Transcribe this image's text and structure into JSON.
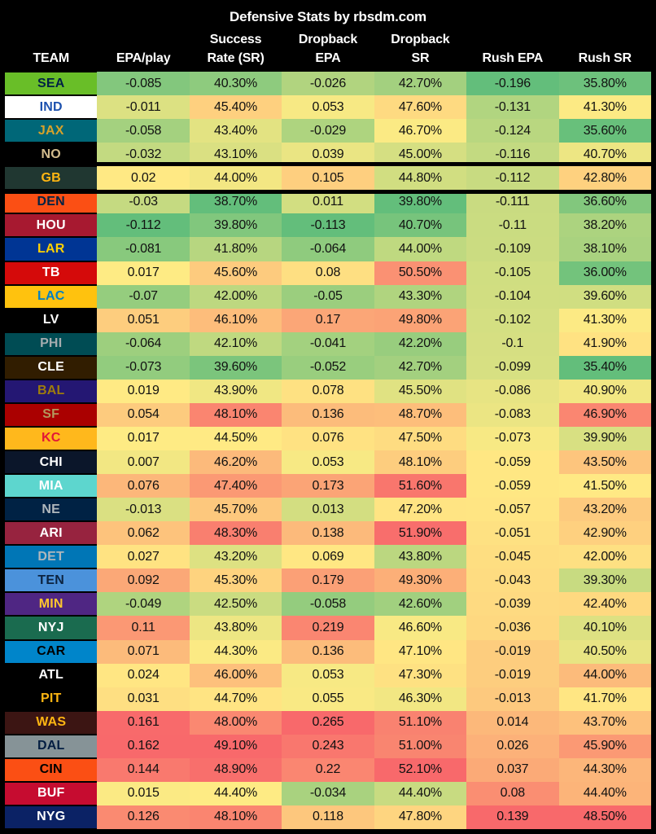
{
  "title": "Defensive Stats by rbsdm.com",
  "columns": [
    {
      "top": "",
      "label": "TEAM"
    },
    {
      "top": "",
      "label": "EPA/play"
    },
    {
      "top": "Success",
      "label": "Rate (SR)"
    },
    {
      "top": "Dropback",
      "label": "EPA"
    },
    {
      "top": "Dropback",
      "label": "SR"
    },
    {
      "top": "",
      "label": "Rush EPA"
    },
    {
      "top": "",
      "label": "Rush SR"
    }
  ],
  "heatmap_colors": {
    "good": "#63BE7B",
    "mid": "#FFEB84",
    "bad": "#F8696B"
  },
  "background_color": "#000000",
  "highlighted_team": "GB",
  "teams": [
    {
      "abbr": "SEA",
      "bg": "#69BE28",
      "fg": "#002244",
      "epa": "-0.085",
      "sr": "40.30%",
      "db_epa": "-0.026",
      "db_sr": "42.70%",
      "rush_epa": "-0.196",
      "rush_sr": "35.80%"
    },
    {
      "abbr": "IND",
      "bg": "#FFFFFF",
      "fg": "#1D51AE",
      "epa": "-0.011",
      "sr": "45.40%",
      "db_epa": "0.053",
      "db_sr": "47.60%",
      "rush_epa": "-0.131",
      "rush_sr": "41.30%"
    },
    {
      "abbr": "JAX",
      "bg": "#006778",
      "fg": "#D7A22A",
      "epa": "-0.058",
      "sr": "43.40%",
      "db_epa": "-0.029",
      "db_sr": "46.70%",
      "rush_epa": "-0.124",
      "rush_sr": "35.60%"
    },
    {
      "abbr": "NO",
      "bg": "#000000",
      "fg": "#D3BC8D",
      "epa": "-0.032",
      "sr": "43.10%",
      "db_epa": "0.039",
      "db_sr": "45.00%",
      "rush_epa": "-0.116",
      "rush_sr": "40.70%"
    },
    {
      "abbr": "GB",
      "bg": "#203731",
      "fg": "#FFB612",
      "epa": "0.02",
      "sr": "44.00%",
      "db_epa": "0.105",
      "db_sr": "44.80%",
      "rush_epa": "-0.112",
      "rush_sr": "42.80%"
    },
    {
      "abbr": "DEN",
      "bg": "#FB4F14",
      "fg": "#002244",
      "epa": "-0.03",
      "sr": "38.70%",
      "db_epa": "0.011",
      "db_sr": "39.80%",
      "rush_epa": "-0.111",
      "rush_sr": "36.60%"
    },
    {
      "abbr": "HOU",
      "bg": "#A71930",
      "fg": "#FFFFFF",
      "epa": "-0.112",
      "sr": "39.80%",
      "db_epa": "-0.113",
      "db_sr": "40.70%",
      "rush_epa": "-0.11",
      "rush_sr": "38.20%"
    },
    {
      "abbr": "LAR",
      "bg": "#003594",
      "fg": "#FFD100",
      "epa": "-0.081",
      "sr": "41.80%",
      "db_epa": "-0.064",
      "db_sr": "44.00%",
      "rush_epa": "-0.109",
      "rush_sr": "38.10%"
    },
    {
      "abbr": "TB",
      "bg": "#D50A0A",
      "fg": "#FFFFFF",
      "epa": "0.017",
      "sr": "45.60%",
      "db_epa": "0.08",
      "db_sr": "50.50%",
      "rush_epa": "-0.105",
      "rush_sr": "36.00%"
    },
    {
      "abbr": "LAC",
      "bg": "#FFC20E",
      "fg": "#0080C6",
      "epa": "-0.07",
      "sr": "42.00%",
      "db_epa": "-0.05",
      "db_sr": "43.30%",
      "rush_epa": "-0.104",
      "rush_sr": "39.60%"
    },
    {
      "abbr": "LV",
      "bg": "#000000",
      "fg": "#FFFFFF",
      "epa": "0.051",
      "sr": "46.10%",
      "db_epa": "0.17",
      "db_sr": "49.80%",
      "rush_epa": "-0.102",
      "rush_sr": "41.30%"
    },
    {
      "abbr": "PHI",
      "bg": "#004C54",
      "fg": "#A5ACAF",
      "epa": "-0.064",
      "sr": "42.10%",
      "db_epa": "-0.041",
      "db_sr": "42.20%",
      "rush_epa": "-0.1",
      "rush_sr": "41.90%"
    },
    {
      "abbr": "CLE",
      "bg": "#311D00",
      "fg": "#FFFFFF",
      "epa": "-0.073",
      "sr": "39.60%",
      "db_epa": "-0.052",
      "db_sr": "42.70%",
      "rush_epa": "-0.099",
      "rush_sr": "35.40%"
    },
    {
      "abbr": "BAL",
      "bg": "#241773",
      "fg": "#9E7C0C",
      "epa": "0.019",
      "sr": "43.90%",
      "db_epa": "0.078",
      "db_sr": "45.50%",
      "rush_epa": "-0.086",
      "rush_sr": "40.90%"
    },
    {
      "abbr": "SF",
      "bg": "#AA0000",
      "fg": "#B3995D",
      "epa": "0.054",
      "sr": "48.10%",
      "db_epa": "0.136",
      "db_sr": "48.70%",
      "rush_epa": "-0.083",
      "rush_sr": "46.90%"
    },
    {
      "abbr": "KC",
      "bg": "#FFB81C",
      "fg": "#E31837",
      "epa": "0.017",
      "sr": "44.50%",
      "db_epa": "0.076",
      "db_sr": "47.50%",
      "rush_epa": "-0.073",
      "rush_sr": "39.90%"
    },
    {
      "abbr": "CHI",
      "bg": "#0B162A",
      "fg": "#FFFFFF",
      "epa": "0.007",
      "sr": "46.20%",
      "db_epa": "0.053",
      "db_sr": "48.10%",
      "rush_epa": "-0.059",
      "rush_sr": "43.50%"
    },
    {
      "abbr": "MIA",
      "bg": "#5DD6CE",
      "fg": "#FFFFFF",
      "epa": "0.076",
      "sr": "47.40%",
      "db_epa": "0.173",
      "db_sr": "51.60%",
      "rush_epa": "-0.059",
      "rush_sr": "41.50%"
    },
    {
      "abbr": "NE",
      "bg": "#002244",
      "fg": "#B0B7BC",
      "epa": "-0.013",
      "sr": "45.70%",
      "db_epa": "0.013",
      "db_sr": "47.20%",
      "rush_epa": "-0.057",
      "rush_sr": "43.20%"
    },
    {
      "abbr": "ARI",
      "bg": "#97233F",
      "fg": "#FFFFFF",
      "epa": "0.062",
      "sr": "48.30%",
      "db_epa": "0.138",
      "db_sr": "51.90%",
      "rush_epa": "-0.051",
      "rush_sr": "42.90%"
    },
    {
      "abbr": "DET",
      "bg": "#0076B6",
      "fg": "#B0B7BC",
      "epa": "0.027",
      "sr": "43.20%",
      "db_epa": "0.069",
      "db_sr": "43.80%",
      "rush_epa": "-0.045",
      "rush_sr": "42.00%"
    },
    {
      "abbr": "TEN",
      "bg": "#4B92DB",
      "fg": "#0C2340",
      "epa": "0.092",
      "sr": "45.30%",
      "db_epa": "0.179",
      "db_sr": "49.30%",
      "rush_epa": "-0.043",
      "rush_sr": "39.30%"
    },
    {
      "abbr": "MIN",
      "bg": "#4F2683",
      "fg": "#FFC62F",
      "epa": "-0.049",
      "sr": "42.50%",
      "db_epa": "-0.058",
      "db_sr": "42.60%",
      "rush_epa": "-0.039",
      "rush_sr": "42.40%"
    },
    {
      "abbr": "NYJ",
      "bg": "#1A6B4F",
      "fg": "#FFFFFF",
      "epa": "0.11",
      "sr": "43.80%",
      "db_epa": "0.219",
      "db_sr": "46.60%",
      "rush_epa": "-0.036",
      "rush_sr": "40.10%"
    },
    {
      "abbr": "CAR",
      "bg": "#0085CA",
      "fg": "#000000",
      "epa": "0.071",
      "sr": "44.30%",
      "db_epa": "0.136",
      "db_sr": "47.10%",
      "rush_epa": "-0.019",
      "rush_sr": "40.50%"
    },
    {
      "abbr": "ATL",
      "bg": "#000000",
      "fg": "#FFFFFF",
      "epa": "0.024",
      "sr": "46.00%",
      "db_epa": "0.053",
      "db_sr": "47.30%",
      "rush_epa": "-0.019",
      "rush_sr": "44.00%"
    },
    {
      "abbr": "PIT",
      "bg": "#000000",
      "fg": "#FFB612",
      "epa": "0.031",
      "sr": "44.70%",
      "db_epa": "0.055",
      "db_sr": "46.30%",
      "rush_epa": "-0.013",
      "rush_sr": "41.70%"
    },
    {
      "abbr": "WAS",
      "bg": "#3C1513",
      "fg": "#FFB612",
      "epa": "0.161",
      "sr": "48.00%",
      "db_epa": "0.265",
      "db_sr": "51.10%",
      "rush_epa": "0.014",
      "rush_sr": "43.70%"
    },
    {
      "abbr": "DAL",
      "bg": "#869397",
      "fg": "#041E42",
      "epa": "0.162",
      "sr": "49.10%",
      "db_epa": "0.243",
      "db_sr": "51.00%",
      "rush_epa": "0.026",
      "rush_sr": "45.90%"
    },
    {
      "abbr": "CIN",
      "bg": "#FB4F14",
      "fg": "#000000",
      "epa": "0.144",
      "sr": "48.90%",
      "db_epa": "0.22",
      "db_sr": "52.10%",
      "rush_epa": "0.037",
      "rush_sr": "44.30%"
    },
    {
      "abbr": "BUF",
      "bg": "#C60C30",
      "fg": "#FFFFFF",
      "epa": "0.015",
      "sr": "44.40%",
      "db_epa": "-0.034",
      "db_sr": "44.40%",
      "rush_epa": "0.08",
      "rush_sr": "44.40%"
    },
    {
      "abbr": "NYG",
      "bg": "#0B2265",
      "fg": "#FFFFFF",
      "epa": "0.126",
      "sr": "48.10%",
      "db_epa": "0.118",
      "db_sr": "47.80%",
      "rush_epa": "0.139",
      "rush_sr": "48.50%"
    }
  ],
  "chart_data": {
    "type": "table",
    "title": "Defensive Stats by rbsdm.com",
    "columns": [
      "TEAM",
      "EPA/play",
      "Success Rate (SR)",
      "Dropback EPA",
      "Dropback SR",
      "Rush EPA",
      "Rush SR"
    ],
    "color_scale": {
      "low": "#63BE7B",
      "mid_percentile_50": "#FFEB84",
      "high": "#F8696B",
      "note": "per-column 3-color heatmap, green=low, red=high"
    },
    "highlighted_row": "GB",
    "rows": [
      [
        "SEA",
        -0.085,
        40.3,
        -0.026,
        42.7,
        -0.196,
        35.8
      ],
      [
        "IND",
        -0.011,
        45.4,
        0.053,
        47.6,
        -0.131,
        41.3
      ],
      [
        "JAX",
        -0.058,
        43.4,
        -0.029,
        46.7,
        -0.124,
        35.6
      ],
      [
        "NO",
        -0.032,
        43.1,
        0.039,
        45.0,
        -0.116,
        40.7
      ],
      [
        "GB",
        0.02,
        44.0,
        0.105,
        44.8,
        -0.112,
        42.8
      ],
      [
        "DEN",
        -0.03,
        38.7,
        0.011,
        39.8,
        -0.111,
        36.6
      ],
      [
        "HOU",
        -0.112,
        39.8,
        -0.113,
        40.7,
        -0.11,
        38.2
      ],
      [
        "LAR",
        -0.081,
        41.8,
        -0.064,
        44.0,
        -0.109,
        38.1
      ],
      [
        "TB",
        0.017,
        45.6,
        0.08,
        50.5,
        -0.105,
        36.0
      ],
      [
        "LAC",
        -0.07,
        42.0,
        -0.05,
        43.3,
        -0.104,
        39.6
      ],
      [
        "LV",
        0.051,
        46.1,
        0.17,
        49.8,
        -0.102,
        41.3
      ],
      [
        "PHI",
        -0.064,
        42.1,
        -0.041,
        42.2,
        -0.1,
        41.9
      ],
      [
        "CLE",
        -0.073,
        39.6,
        -0.052,
        42.7,
        -0.099,
        35.4
      ],
      [
        "BAL",
        0.019,
        43.9,
        0.078,
        45.5,
        -0.086,
        40.9
      ],
      [
        "SF",
        0.054,
        48.1,
        0.136,
        48.7,
        -0.083,
        46.9
      ],
      [
        "KC",
        0.017,
        44.5,
        0.076,
        47.5,
        -0.073,
        39.9
      ],
      [
        "CHI",
        0.007,
        46.2,
        0.053,
        48.1,
        -0.059,
        43.5
      ],
      [
        "MIA",
        0.076,
        47.4,
        0.173,
        51.6,
        -0.059,
        41.5
      ],
      [
        "NE",
        -0.013,
        45.7,
        0.013,
        47.2,
        -0.057,
        43.2
      ],
      [
        "ARI",
        0.062,
        48.3,
        0.138,
        51.9,
        -0.051,
        42.9
      ],
      [
        "DET",
        0.027,
        43.2,
        0.069,
        43.8,
        -0.045,
        42.0
      ],
      [
        "TEN",
        0.092,
        45.3,
        0.179,
        49.3,
        -0.043,
        39.3
      ],
      [
        "MIN",
        -0.049,
        42.5,
        -0.058,
        42.6,
        -0.039,
        42.4
      ],
      [
        "NYJ",
        0.11,
        43.8,
        0.219,
        46.6,
        -0.036,
        40.1
      ],
      [
        "CAR",
        0.071,
        44.3,
        0.136,
        47.1,
        -0.019,
        40.5
      ],
      [
        "ATL",
        0.024,
        46.0,
        0.053,
        47.3,
        -0.019,
        44.0
      ],
      [
        "PIT",
        0.031,
        44.7,
        0.055,
        46.3,
        -0.013,
        41.7
      ],
      [
        "WAS",
        0.161,
        48.0,
        0.265,
        51.1,
        0.014,
        43.7
      ],
      [
        "DAL",
        0.162,
        49.1,
        0.243,
        51.0,
        0.026,
        45.9
      ],
      [
        "CIN",
        0.144,
        48.9,
        0.22,
        52.1,
        0.037,
        44.3
      ],
      [
        "BUF",
        0.015,
        44.4,
        -0.034,
        44.4,
        0.08,
        44.4
      ],
      [
        "NYG",
        0.126,
        48.1,
        0.118,
        47.8,
        0.139,
        48.5
      ]
    ]
  }
}
